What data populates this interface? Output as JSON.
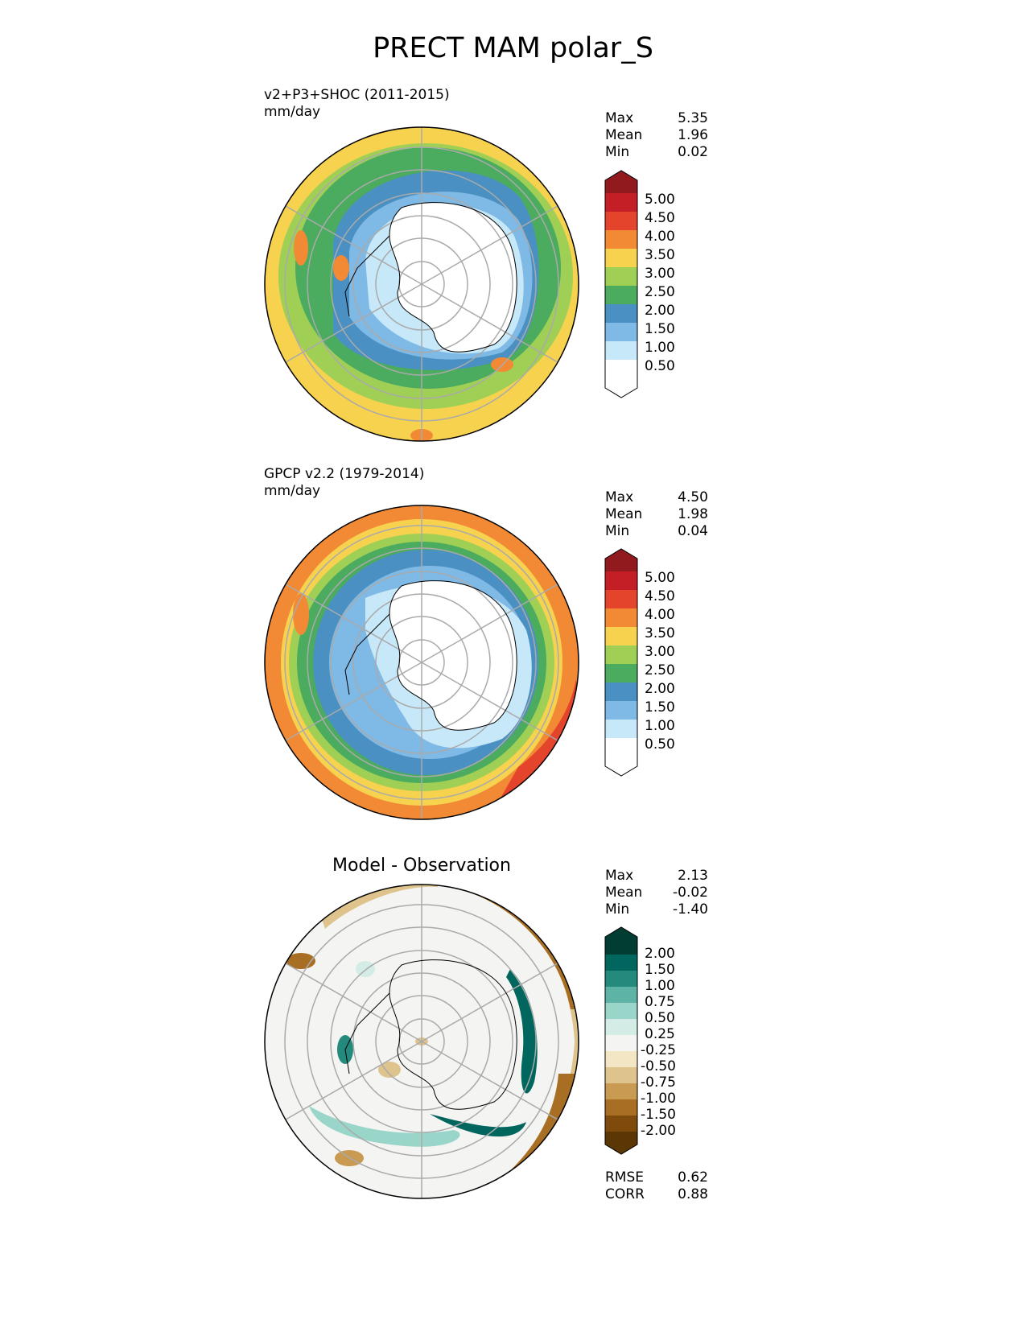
{
  "title": "PRECT MAM polar_S",
  "panels": [
    {
      "id": "test",
      "title_line1": "v2+P3+SHOC (2011-2015)",
      "title_line2": "mm/day",
      "stats": {
        "max_label": "Max",
        "max": "5.35",
        "mean_label": "Mean",
        "mean": "1.96",
        "min_label": "Min",
        "min": "0.02"
      },
      "colorbar_ticks": [
        "5.00",
        "4.50",
        "4.00",
        "3.50",
        "3.00",
        "2.50",
        "2.00",
        "1.50",
        "1.00",
        "0.50"
      ]
    },
    {
      "id": "ref",
      "title_line1": "GPCP v2.2 (1979-2014)",
      "title_line2": "mm/day",
      "stats": {
        "max_label": "Max",
        "max": "4.50",
        "mean_label": "Mean",
        "mean": "1.98",
        "min_label": "Min",
        "min": "0.04"
      },
      "colorbar_ticks": [
        "5.00",
        "4.50",
        "4.00",
        "3.50",
        "3.00",
        "2.50",
        "2.00",
        "1.50",
        "1.00",
        "0.50"
      ]
    },
    {
      "id": "diff",
      "center_title": "Model - Observation",
      "stats": {
        "max_label": "Max",
        "max": "2.13",
        "mean_label": "Mean",
        "mean": "-0.02",
        "min_label": "Min",
        "min": "-1.40"
      },
      "colorbar_ticks": [
        "2.00",
        "1.50",
        "1.00",
        "0.75",
        "0.50",
        "0.25",
        "-0.25",
        "-0.50",
        "-0.75",
        "-1.00",
        "-1.50",
        "-2.00"
      ],
      "metrics": {
        "rmse_label": "RMSE",
        "rmse": "0.62",
        "corr_label": "CORR",
        "corr": "0.88"
      }
    }
  ],
  "colors": {
    "prect_scale": [
      "#ffffff",
      "#c6e8f8",
      "#7fb9e6",
      "#4a90c2",
      "#4bab5f",
      "#9fcf55",
      "#f6d24f",
      "#f28a35",
      "#e4432c",
      "#c41e26",
      "#901a1e"
    ],
    "diff_scale": [
      "#5a3705",
      "#7f4b0d",
      "#a86e23",
      "#c89a52",
      "#dfc38d",
      "#f3e6c4",
      "#f4f4f2",
      "#d3ece6",
      "#99d5c9",
      "#5db3a5",
      "#238a7d",
      "#01665d",
      "#013d33"
    ]
  }
}
